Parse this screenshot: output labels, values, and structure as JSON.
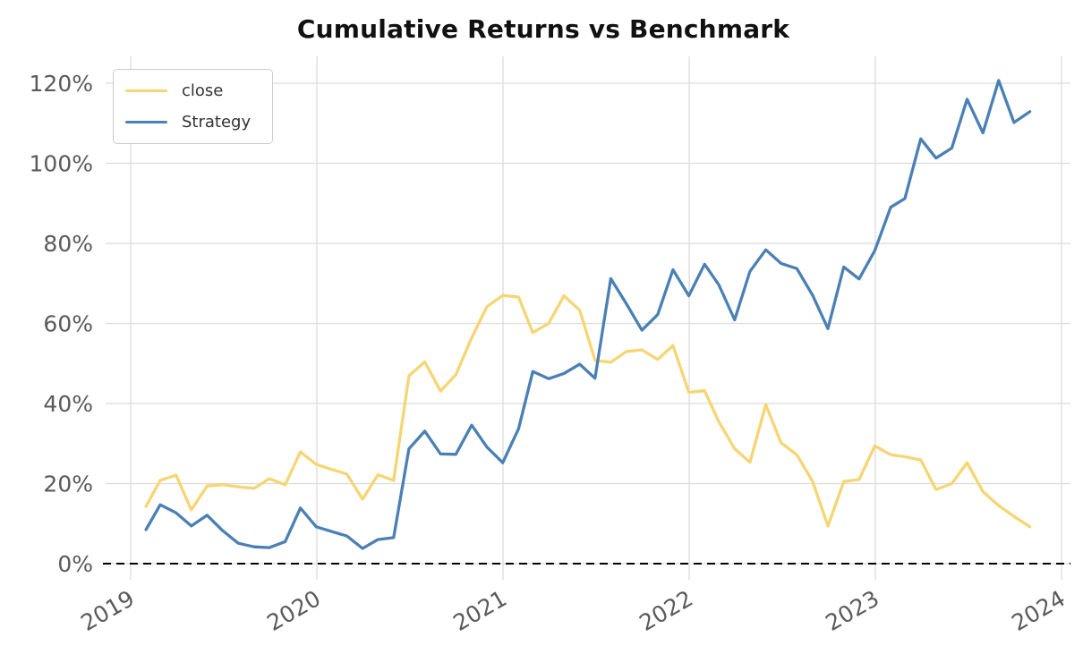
{
  "title": "Cumulative Returns vs Benchmark",
  "legend": {
    "position": "upper-left",
    "items": [
      {
        "label": "close",
        "color": "#F6D573"
      },
      {
        "label": "Strategy",
        "color": "#4A80B4"
      }
    ]
  },
  "axes": {
    "y_tick_labels": [
      "0%",
      "20%",
      "40%",
      "60%",
      "80%",
      "100%",
      "120%"
    ],
    "x_tick_labels": [
      "2019",
      "2020",
      "2021",
      "2022",
      "2023",
      "2024"
    ],
    "tick_color": "#5a5a5a",
    "grid_color": "#dcdcdc",
    "zero_line_color": "#000000"
  },
  "chart_data": {
    "type": "line",
    "title": "Cumulative Returns vs Benchmark",
    "xlabel": "",
    "ylabel": "",
    "grid": true,
    "legend_position": "upper-left",
    "x_tick_labels": [
      "2019",
      "2020",
      "2021",
      "2022",
      "2023",
      "2024"
    ],
    "y_ticks_pct": [
      0,
      20,
      40,
      60,
      80,
      100,
      120
    ],
    "ylim_pct": [
      -2.5,
      126.5
    ],
    "baseline": {
      "value_pct": 0,
      "style": "dashed",
      "color": "#000000"
    },
    "x_months": [
      "2019-01",
      "2019-02",
      "2019-03",
      "2019-04",
      "2019-05",
      "2019-06",
      "2019-07",
      "2019-08",
      "2019-09",
      "2019-10",
      "2019-11",
      "2019-12",
      "2020-01",
      "2020-02",
      "2020-03",
      "2020-04",
      "2020-05",
      "2020-06",
      "2020-07",
      "2020-08",
      "2020-09",
      "2020-10",
      "2020-11",
      "2020-12",
      "2021-01",
      "2021-02",
      "2021-03",
      "2021-04",
      "2021-05",
      "2021-06",
      "2021-07",
      "2021-08",
      "2021-09",
      "2021-10",
      "2021-11",
      "2021-12",
      "2022-01",
      "2022-02",
      "2022-03",
      "2022-04",
      "2022-05",
      "2022-06",
      "2022-07",
      "2022-08",
      "2022-09",
      "2022-10",
      "2022-11",
      "2022-12",
      "2023-01",
      "2023-02",
      "2023-03",
      "2023-04",
      "2023-05",
      "2023-06",
      "2023-07",
      "2023-08",
      "2023-09",
      "2023-10"
    ],
    "series": [
      {
        "name": "close",
        "color": "#F6D573",
        "values_pct": [
          14.3,
          20.8,
          22.1,
          13.4,
          19.4,
          19.7,
          19.2,
          18.8,
          21.2,
          19.7,
          27.9,
          24.8,
          23.5,
          22.4,
          16.1,
          22.2,
          20.8,
          46.9,
          50.4,
          43.1,
          47.2,
          56.4,
          64.2,
          67.0,
          66.6,
          57.7,
          60.0,
          66.9,
          63.3,
          50.8,
          50.3,
          53.0,
          53.4,
          51.0,
          54.5,
          42.8,
          43.2,
          35.4,
          28.7,
          25.3,
          39.7,
          30.2,
          27.2,
          20.5,
          9.4,
          20.5,
          21.0,
          29.4,
          27.2,
          26.7,
          25.9,
          18.5,
          20.0,
          25.2,
          18.0,
          14.5,
          11.8,
          9.2
        ]
      },
      {
        "name": "Strategy",
        "color": "#4A80B4",
        "values_pct": [
          8.5,
          14.7,
          12.7,
          9.4,
          12.1,
          8.3,
          5.1,
          4.2,
          4.0,
          5.5,
          13.9,
          9.2,
          8.0,
          6.9,
          3.8,
          6.0,
          6.5,
          28.7,
          33.1,
          27.4,
          27.3,
          34.6,
          29.1,
          25.2,
          33.7,
          48.0,
          46.2,
          47.5,
          49.8,
          46.3,
          71.2,
          64.8,
          58.3,
          62.2,
          73.4,
          66.9,
          74.8,
          69.6,
          60.9,
          73.0,
          78.4,
          75.0,
          73.7,
          67.0,
          58.7,
          74.1,
          71.1,
          78.2,
          89.0,
          91.2,
          106.1,
          101.3,
          103.8,
          116.0,
          107.6,
          120.7,
          110.2,
          112.9
        ]
      }
    ]
  }
}
